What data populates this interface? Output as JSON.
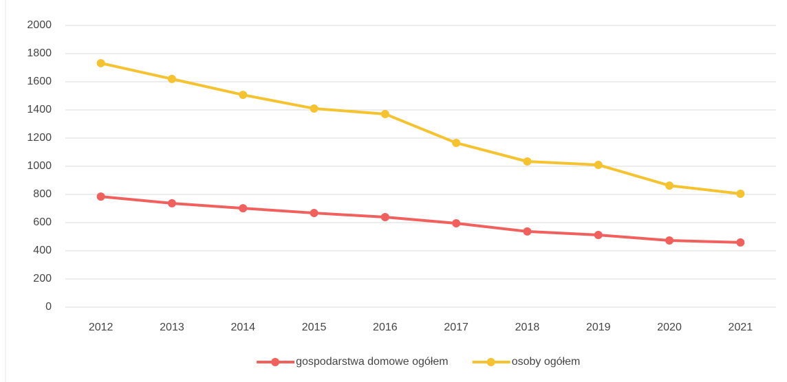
{
  "chart_data": {
    "type": "line",
    "categories": [
      "2012",
      "2013",
      "2014",
      "2015",
      "2016",
      "2017",
      "2018",
      "2019",
      "2020",
      "2021"
    ],
    "series": [
      {
        "name": "gospodarstwa domowe ogółem",
        "color": "#f0605d",
        "values": [
          785,
          737,
          702,
          668,
          639,
          595,
          537,
          512,
          473,
          459
        ]
      },
      {
        "name": "osoby ogółem",
        "color": "#f5c330",
        "values": [
          1732,
          1620,
          1507,
          1410,
          1371,
          1166,
          1034,
          1010,
          863,
          805
        ]
      }
    ],
    "ylim": [
      0,
      2000
    ],
    "yticks": [
      0,
      200,
      400,
      600,
      800,
      1000,
      1200,
      1400,
      1600,
      1800,
      2000
    ],
    "grid": true,
    "legend": "bottom"
  }
}
